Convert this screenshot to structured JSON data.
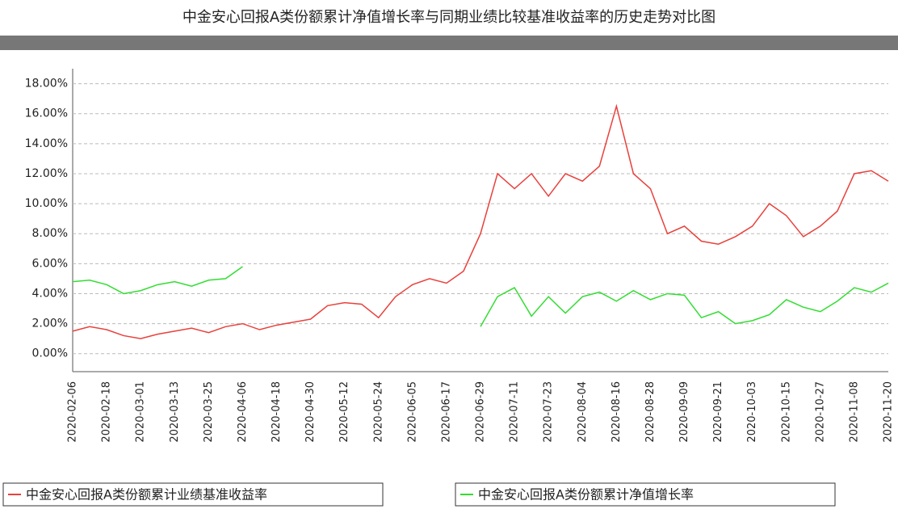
{
  "chart_data": {
    "type": "line",
    "title": "中金安心回报A类份额累计净值增长率与同期业绩比较基准收益率的历史走势对比图",
    "categories": [
      "2020-02-06",
      "2020-02-12",
      "2020-02-18",
      "2020-02-24",
      "2020-03-01",
      "2020-03-07",
      "2020-03-13",
      "2020-03-19",
      "2020-03-25",
      "2020-03-31",
      "2020-04-06",
      "2020-04-12",
      "2020-04-18",
      "2020-04-24",
      "2020-04-30",
      "2020-05-06",
      "2020-05-12",
      "2020-05-18",
      "2020-05-24",
      "2020-05-30",
      "2020-06-05",
      "2020-06-11",
      "2020-06-17",
      "2020-06-23",
      "2020-06-29",
      "2020-07-05",
      "2020-07-11",
      "2020-07-17",
      "2020-07-23",
      "2020-07-29",
      "2020-08-04",
      "2020-08-10",
      "2020-08-16",
      "2020-08-22",
      "2020-08-28",
      "2020-09-03",
      "2020-09-09",
      "2020-09-15",
      "2020-09-21",
      "2020-09-27",
      "2020-10-03",
      "2020-10-09",
      "2020-10-15",
      "2020-10-21",
      "2020-10-27",
      "2020-11-02",
      "2020-11-08",
      "2020-11-14",
      "2020-11-20"
    ],
    "series": [
      {
        "name": "中金安心回报A类份额累计业绩基准收益率",
        "color": "#e8413c",
        "values": [
          1.5,
          1.8,
          1.6,
          1.2,
          1.0,
          1.3,
          1.5,
          1.7,
          1.4,
          1.8,
          2.0,
          1.6,
          1.9,
          2.1,
          2.3,
          3.2,
          3.4,
          3.3,
          2.4,
          3.8,
          4.6,
          5.0,
          4.7,
          5.5,
          8.0,
          12.0,
          11.0,
          12.0,
          10.5,
          12.0,
          11.5,
          12.5,
          16.5,
          12.0,
          11.0,
          8.0,
          8.5,
          7.5,
          7.3,
          7.8,
          8.5,
          10.0,
          9.2,
          7.8,
          8.5,
          9.5,
          12.0,
          12.2,
          11.5
        ]
      },
      {
        "name": "中金安心回报A类份额累计净值增长率",
        "color": "#33dd33",
        "values": [
          4.8,
          4.9,
          4.6,
          4.0,
          4.2,
          4.6,
          4.8,
          4.5,
          4.9,
          5.0,
          5.8,
          null,
          null,
          null,
          null,
          null,
          null,
          null,
          null,
          null,
          null,
          null,
          null,
          null,
          1.8,
          3.8,
          4.4,
          2.5,
          3.8,
          2.7,
          3.8,
          4.1,
          3.5,
          4.2,
          3.6,
          4.0,
          3.9,
          2.4,
          2.8,
          2.0,
          2.2,
          2.6,
          3.6,
          3.1,
          2.8,
          3.5,
          4.4,
          4.1,
          4.7
        ]
      }
    ],
    "ylim": [
      -1.2,
      19
    ],
    "yticks": [
      {
        "value": 0,
        "label": "0.00%"
      },
      {
        "value": 2,
        "label": "2.00%"
      },
      {
        "value": 4,
        "label": "4.00%"
      },
      {
        "value": 6,
        "label": "6.00%"
      },
      {
        "value": 8,
        "label": "8.00%"
      },
      {
        "value": 10,
        "label": "10.00%"
      },
      {
        "value": 12,
        "label": "12.00%"
      },
      {
        "value": 14,
        "label": "14.00%"
      },
      {
        "value": 16,
        "label": "16.00%"
      },
      {
        "value": 18,
        "label": "18.00%"
      }
    ],
    "grid": true
  }
}
